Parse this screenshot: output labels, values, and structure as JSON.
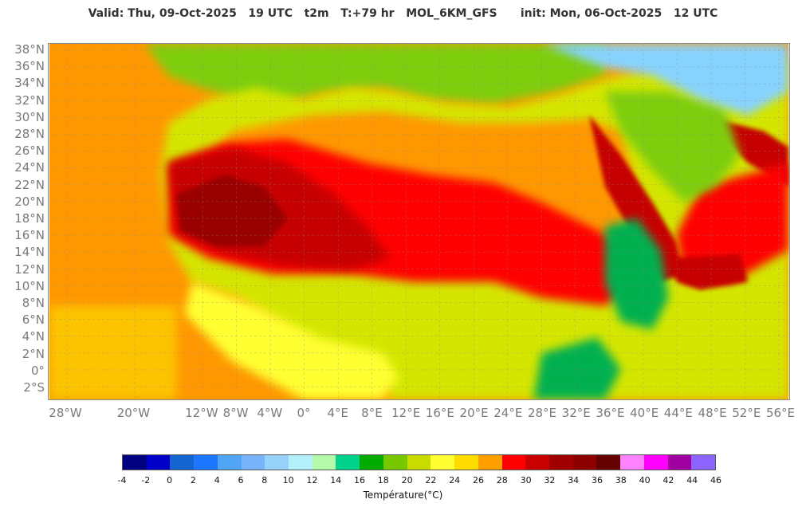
{
  "header": {
    "title": "Valid: Thu, 09-Oct-2025   19 UTC   t2m   T:+79 hr   MOL_6KM_GFS      init: Mon, 06-Oct-2025   12 UTC"
  },
  "map": {
    "lat_labels": [
      "38°N",
      "36°N",
      "34°N",
      "32°N",
      "30°N",
      "28°N",
      "26°N",
      "24°N",
      "22°N",
      "20°N",
      "18°N",
      "16°N",
      "14°N",
      "12°N",
      "10°N",
      "8°N",
      "6°N",
      "4°N",
      "2°N",
      "0°",
      "2°S"
    ],
    "lon_labels": [
      "28°W",
      "20°W",
      "12°W",
      "8°W",
      "4°W",
      "0°",
      "4°E",
      "8°E",
      "12°E",
      "16°E",
      "20°E",
      "24°E",
      "28°E",
      "32°E",
      "36°E",
      "40°E",
      "44°E",
      "48°E",
      "52°E",
      "56°E"
    ],
    "lon_values": [
      -28,
      -20,
      -12,
      -8,
      -4,
      0,
      4,
      8,
      12,
      16,
      20,
      24,
      28,
      32,
      36,
      40,
      44,
      48,
      52,
      56
    ],
    "colors": {
      "ocean": "#ff9800",
      "ocean_south": "#fcc400",
      "mediterranean": "#7ece10",
      "north_africa": "#d4e600",
      "sahara": "#ff9800",
      "hot": "#ff0000",
      "very_hot": "#c60000",
      "extreme": "#990000",
      "highland": "#00b050",
      "cool_peak": "#86d3ff",
      "coast": "#ffff33"
    }
  },
  "colorbar": {
    "title": "Température(°C)",
    "ticks": [
      "-4",
      "-2",
      "0",
      "2",
      "4",
      "6",
      "8",
      "10",
      "12",
      "14",
      "16",
      "18",
      "20",
      "22",
      "24",
      "26",
      "28",
      "30",
      "32",
      "34",
      "36",
      "38",
      "40",
      "42",
      "44",
      "46"
    ],
    "colors": [
      "#000080",
      "#0000c8",
      "#1464d2",
      "#1e78ff",
      "#50a5f5",
      "#78b4fa",
      "#96d2fa",
      "#b4f0fa",
      "#b4faaa",
      "#00d28c",
      "#00aa00",
      "#78c800",
      "#c8dc00",
      "#ffff32",
      "#ffdc00",
      "#ffa000",
      "#ff0000",
      "#c80000",
      "#a00000",
      "#8c0000",
      "#640000",
      "#ff82ff",
      "#ff00ff",
      "#a000a0",
      "#8c64ff"
    ]
  }
}
